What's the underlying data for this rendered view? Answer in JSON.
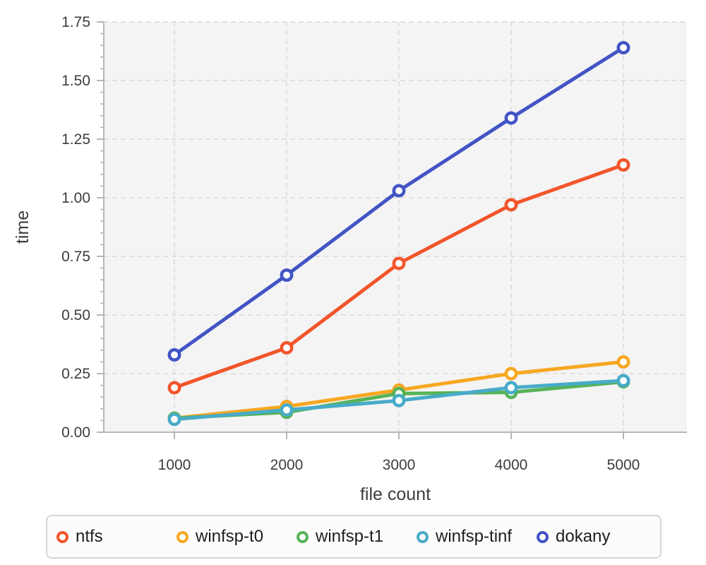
{
  "chart_data": {
    "type": "line",
    "title": "",
    "xlabel": "file count",
    "ylabel": "time",
    "x": [
      1000,
      2000,
      3000,
      4000,
      5000
    ],
    "x_tick_labels": [
      "1000",
      "2000",
      "3000",
      "4000",
      "5000"
    ],
    "y_major_ticks": [
      0,
      0.25,
      0.5,
      0.75,
      1.0,
      1.25,
      1.5,
      1.75
    ],
    "y_tick_labels": [
      "0.00",
      "0.25",
      "0.50",
      "0.75",
      "1.00",
      "1.25",
      "1.50",
      "1.75"
    ],
    "y_minor_step": 0.05,
    "xlim": [
      371,
      5566
    ],
    "ylim": [
      0,
      1.75
    ],
    "grid": "dashed",
    "marker": "open-circle",
    "legend_position": "bottom",
    "series": [
      {
        "name": "ntfs",
        "color": "#f2552a",
        "values": [
          0.19,
          0.36,
          0.72,
          0.97,
          1.14
        ]
      },
      {
        "name": "winfsp-t0",
        "color": "#f7a721",
        "values": [
          0.06,
          0.11,
          0.18,
          0.25,
          0.3
        ]
      },
      {
        "name": "winfsp-t1",
        "color": "#57b257",
        "values": [
          0.06,
          0.085,
          0.165,
          0.17,
          0.215
        ]
      },
      {
        "name": "winfsp-tinf",
        "color": "#47abc8",
        "values": [
          0.055,
          0.095,
          0.135,
          0.19,
          0.22
        ]
      },
      {
        "name": "dokany",
        "color": "#4254c4",
        "values": [
          0.33,
          0.67,
          1.03,
          1.34,
          1.64
        ]
      }
    ]
  },
  "styles": {
    "plot_bg": "#f4f4f5",
    "grid_color": "#d9d9d9",
    "axis_color": "#b6b6b6",
    "tick_label_color": "#3d3d3d",
    "axis_label_color": "#3d3d3d",
    "legend_border": "#d6d6d6",
    "legend_bg": "#fcfcfd",
    "legend_text": "#1d1d1f"
  }
}
